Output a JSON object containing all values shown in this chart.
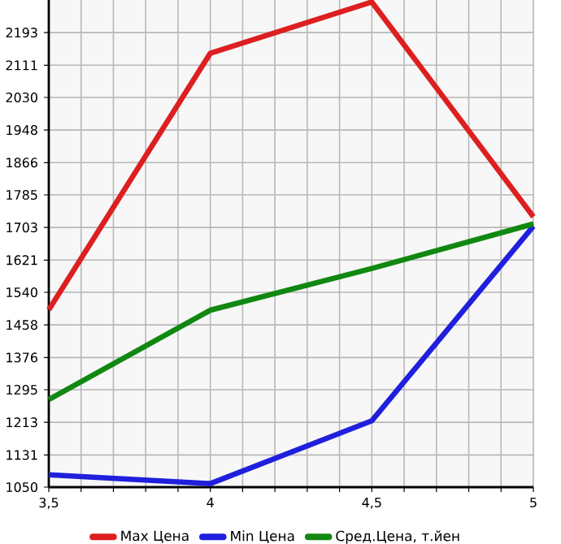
{
  "chart_data": {
    "type": "line",
    "x": [
      3.5,
      4,
      4.5,
      5
    ],
    "series": [
      {
        "name": "Max Цена",
        "color": "#dd1f1f",
        "values": [
          1496,
          2141,
          2270,
          1730
        ]
      },
      {
        "name": "Min Цена",
        "color": "#1f1fdd",
        "values": [
          1081,
          1059,
          1217,
          1706
        ]
      },
      {
        "name": "Сред.Цена, т.йен",
        "color": "#118811",
        "values": [
          1270,
          1495,
          1600,
          1712
        ]
      }
    ],
    "xlim": [
      3.5,
      5
    ],
    "xticks": [
      {
        "value": 3.5,
        "label": "3,5"
      },
      {
        "value": 3.6,
        "label": null
      },
      {
        "value": 3.7,
        "label": null
      },
      {
        "value": 3.8,
        "label": null
      },
      {
        "value": 3.9,
        "label": null
      },
      {
        "value": 4,
        "label": "4"
      },
      {
        "value": 4.1,
        "label": null
      },
      {
        "value": 4.2,
        "label": null
      },
      {
        "value": 4.3,
        "label": null
      },
      {
        "value": 4.4,
        "label": null
      },
      {
        "value": 4.5,
        "label": "4,5"
      },
      {
        "value": 4.6,
        "label": null
      },
      {
        "value": 4.7,
        "label": null
      },
      {
        "value": 4.8,
        "label": null
      },
      {
        "value": 4.9,
        "label": null
      },
      {
        "value": 5,
        "label": "5"
      }
    ],
    "ylim": [
      1050,
      2275
    ],
    "yticks": [
      1050,
      1131,
      1213,
      1295,
      1376,
      1458,
      1540,
      1621,
      1703,
      1785,
      1866,
      1948,
      2030,
      2111,
      2193
    ],
    "grid": true,
    "legend": "bottom",
    "marker": "none",
    "line_style": "solid"
  }
}
